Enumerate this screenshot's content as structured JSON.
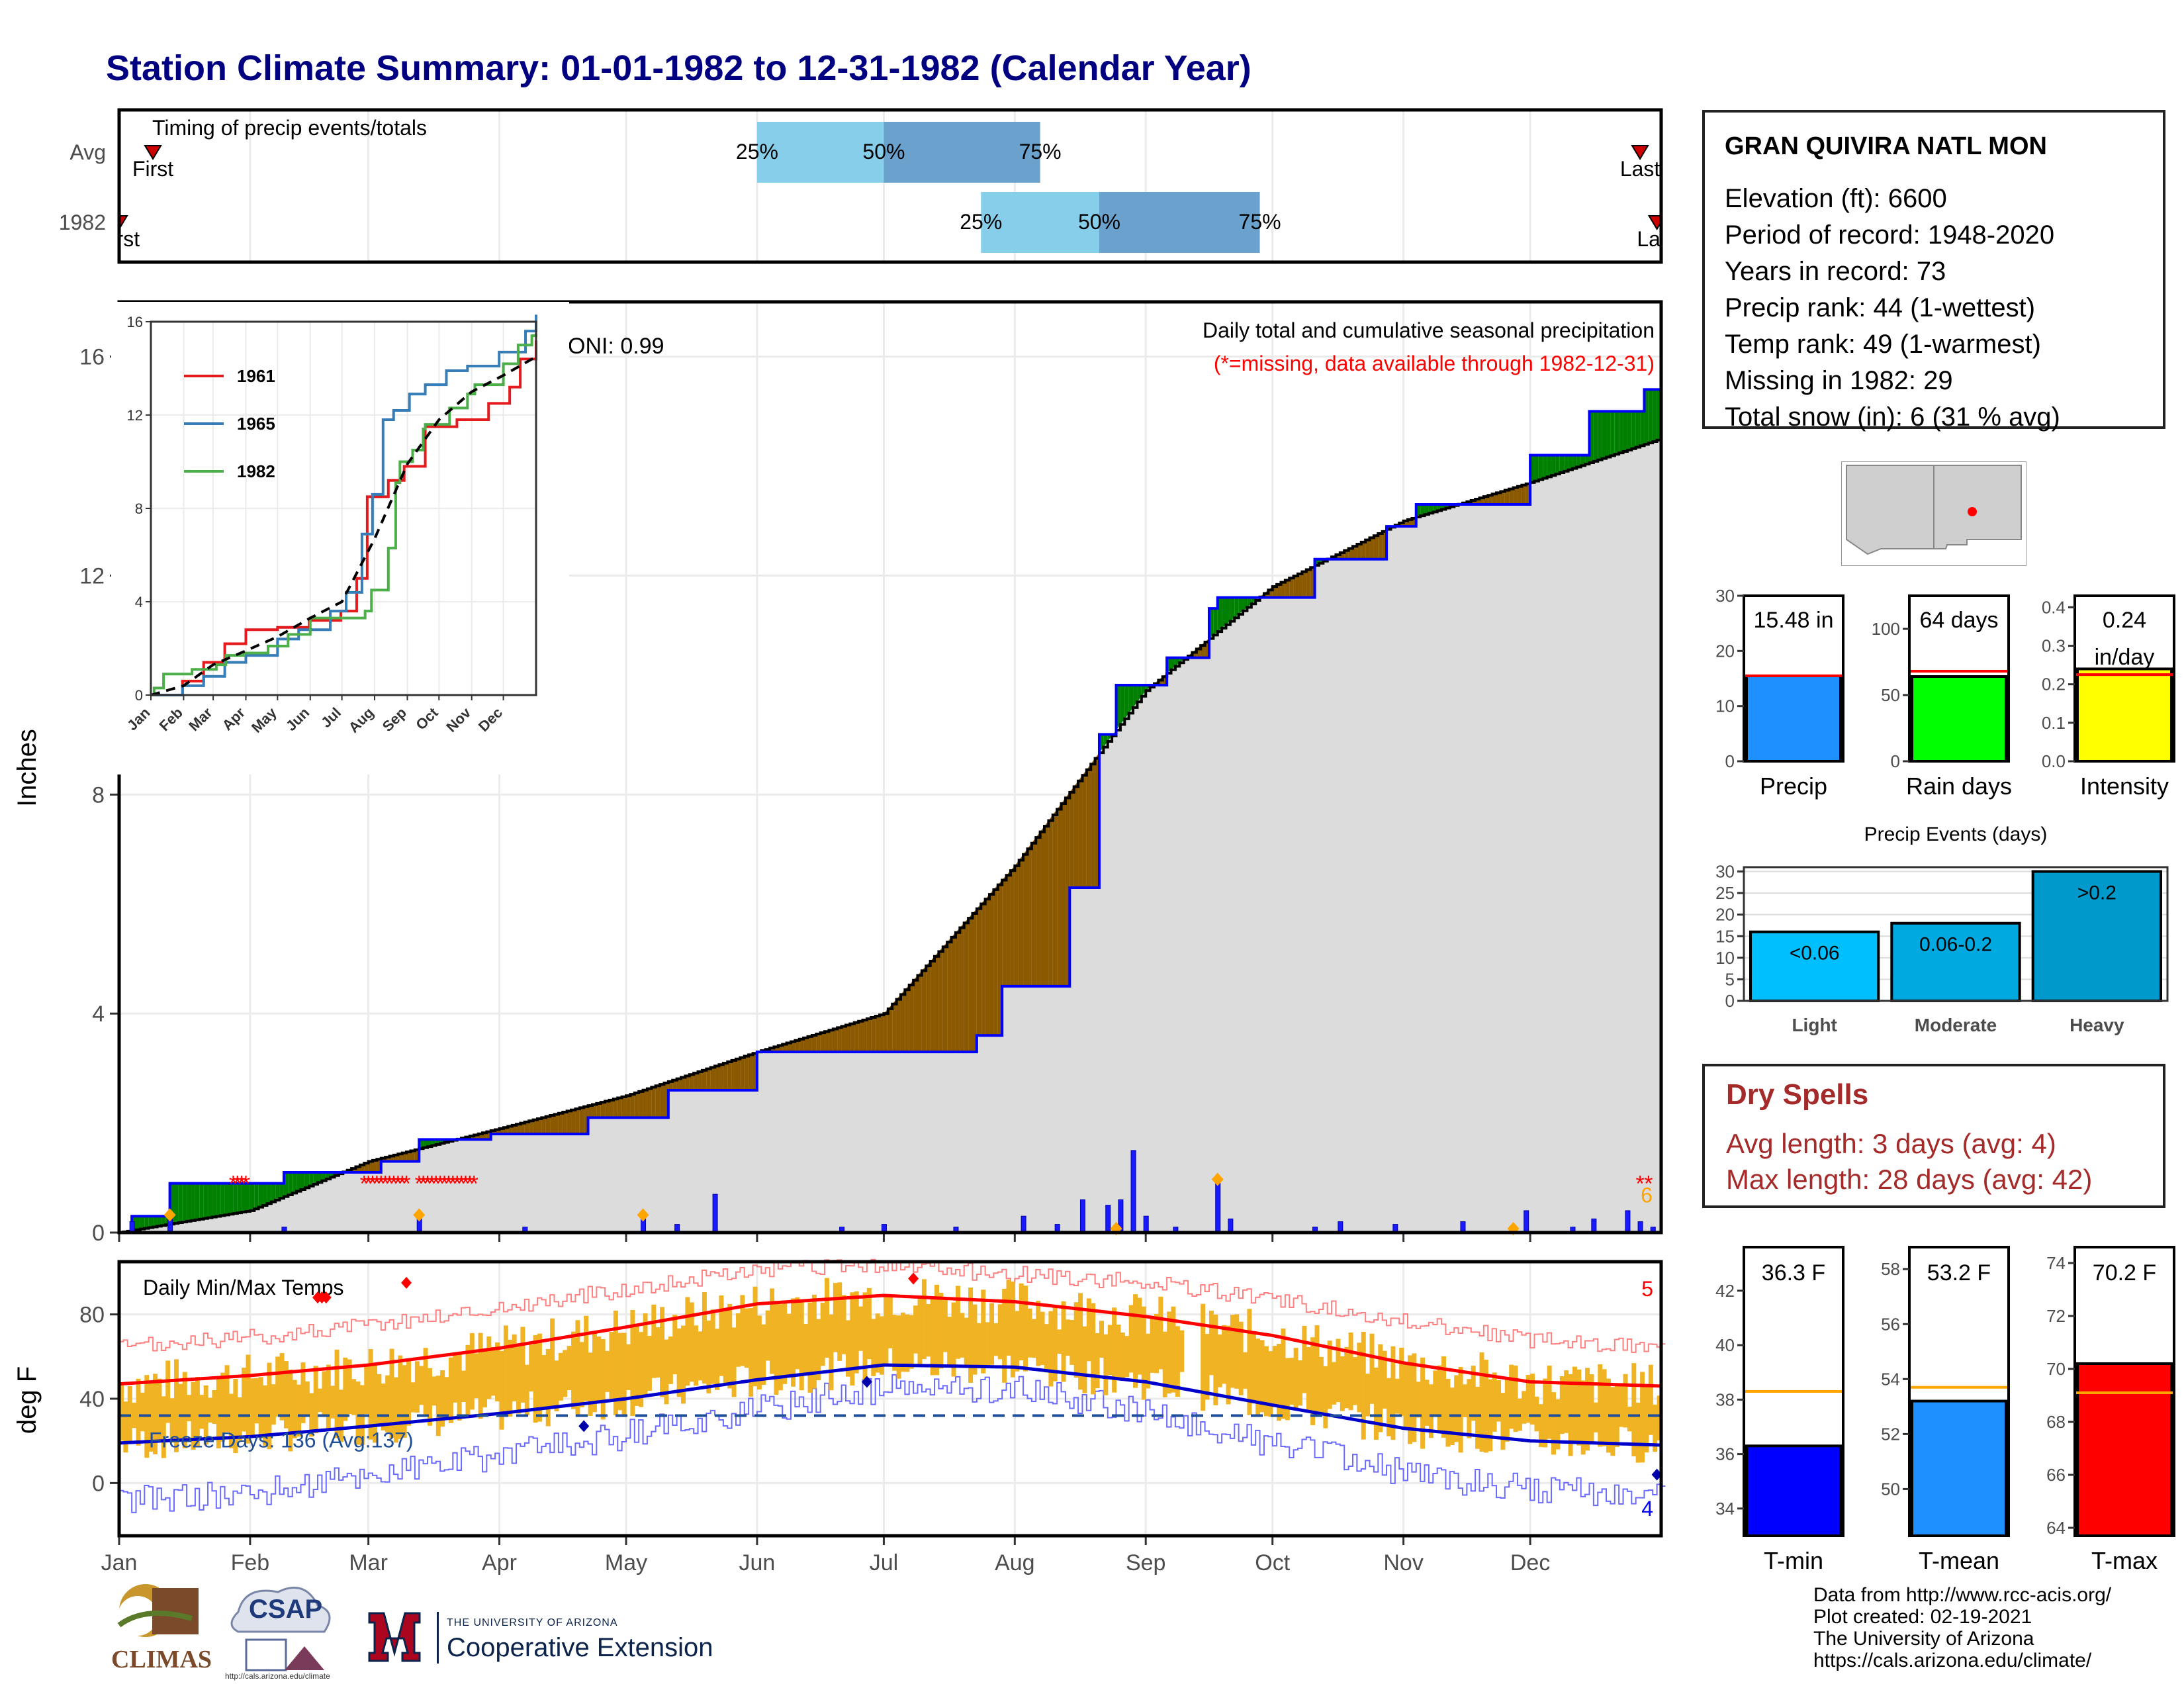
{
  "title": "Station Climate Summary: 01-01-1982 to 12-31-1982 (Calendar Year)",
  "station_info": {
    "name": "GRAN QUIVIRA NATL MON",
    "lines": [
      "Elevation (ft): 6600",
      "Period of record: 1948-2020",
      "Years in record: 73",
      "Precip rank: 44 (1-wettest)",
      "Temp rank: 49 (1-warmest)",
      "Missing in 1982: 29",
      "Total snow (in): 6 (31 % avg)"
    ]
  },
  "dry_spells": {
    "title": "Dry Spells",
    "avg": "Avg length: 3 days (avg: 4)",
    "max": "Max length: 28 days (avg: 42)"
  },
  "credits": [
    "Data from http://www.rcc-acis.org/",
    "Plot created: 02-19-2021",
    "The University of Arizona",
    "https://cals.arizona.edu/climate/"
  ],
  "logos": {
    "climas": "CLIMAS",
    "csap": "CSAP",
    "csap_url": "http://cals.arizona.edu/climate",
    "ua_small": "THE UNIVERSITY OF ARIZONA",
    "ua_big": "Cooperative Extension"
  },
  "colors": {
    "title": "#000080",
    "precip_obs": "#1a1aff",
    "wet_fill": "#008000",
    "dry_fill": "#8b5a00",
    "normal_fill": "#dcdcdc",
    "temp_bar": "#f0b323",
    "tmax_norm": "#ff0000",
    "tmin_norm": "#0000cc",
    "missing": "#ff0000"
  },
  "chart_data": [
    {
      "id": "timing",
      "type": "bar",
      "title": "Timing of precip events/totals",
      "categories": [
        "Avg",
        "1982"
      ],
      "quartile_labels": [
        "25%",
        "50%",
        "75%"
      ],
      "first_label": "First",
      "last_label": "Last",
      "rows": [
        {
          "name": "Avg",
          "first": "01-09",
          "q25": "06-01",
          "q50": "07-01",
          "q75": "08-07",
          "last": "12-27"
        },
        {
          "name": "1982",
          "first": "01-01",
          "q25": "07-24",
          "q50": "08-21",
          "q75": "09-28",
          "last": "12-31"
        }
      ]
    },
    {
      "id": "precip",
      "type": "area",
      "title": "Daily total and cumulative seasonal precipitation",
      "subtitle": "(*=missing, data available through 1982-12-31)",
      "ylabel": "Inches",
      "ylim": [
        0,
        17
      ],
      "yticks": [
        0,
        4,
        8,
        12,
        16
      ],
      "xticks": [
        "Jan",
        "Feb",
        "Mar",
        "Apr",
        "May",
        "Jun",
        "Jul",
        "Aug",
        "Sep",
        "Oct",
        "Nov",
        "Dec"
      ],
      "oni": "ONI: 0.99",
      "snow_total": "6",
      "normal_cumulative": {
        "x": [
          0,
          31,
          59,
          90,
          120,
          151,
          181,
          212,
          243,
          273,
          304,
          334,
          365
        ],
        "y": [
          0,
          0.4,
          1.3,
          1.9,
          2.5,
          3.3,
          4.0,
          6.7,
          9.9,
          11.8,
          13.0,
          13.7,
          14.5
        ]
      },
      "observed_cumulative": {
        "x": [
          0,
          3,
          12,
          39,
          62,
          71,
          88,
          111,
          130,
          151,
          181,
          203,
          209,
          225,
          232,
          236,
          248,
          258,
          260,
          283,
          300,
          307,
          334,
          348,
          361,
          365
        ],
        "y": [
          0,
          0.3,
          0.9,
          1.1,
          1.3,
          1.7,
          1.8,
          2.1,
          2.6,
          3.3,
          3.3,
          3.6,
          4.5,
          6.3,
          9.1,
          10.0,
          10.5,
          11.4,
          11.6,
          12.3,
          12.9,
          13.3,
          14.2,
          15.0,
          15.4,
          15.5
        ]
      },
      "daily_precip": {
        "day": [
          3,
          12,
          39,
          71,
          96,
          124,
          132,
          141,
          171,
          181,
          198,
          214,
          222,
          228,
          234,
          237,
          240,
          243,
          250,
          260,
          263,
          283,
          289,
          302,
          318,
          333,
          344,
          349,
          357,
          360,
          363
        ],
        "value": [
          0.2,
          0.25,
          0.1,
          0.25,
          0.1,
          0.25,
          0.15,
          0.7,
          0.1,
          0.15,
          0.1,
          0.3,
          0.15,
          0.6,
          0.5,
          0.6,
          1.5,
          0.3,
          0.1,
          0.9,
          0.25,
          0.1,
          0.2,
          0.15,
          0.2,
          0.4,
          0.1,
          0.25,
          0.4,
          0.2,
          0.1
        ]
      },
      "missing_days": [
        27,
        28,
        29,
        30,
        58,
        59,
        60,
        61,
        62,
        63,
        64,
        65,
        66,
        67,
        68,
        71,
        72,
        73,
        74,
        75,
        76,
        77,
        78,
        79,
        80,
        81,
        82,
        83,
        84,
        360,
        362
      ],
      "snow_days": [
        12,
        71,
        124,
        236,
        260,
        330
      ],
      "inset": {
        "type": "line",
        "ylim": [
          0,
          16
        ],
        "yticks": [
          0,
          4,
          8,
          12,
          16
        ],
        "xticks": [
          "Jan",
          "Feb",
          "Mar",
          "Apr",
          "May",
          "Jun",
          "Jul",
          "Aug",
          "Sep",
          "Oct",
          "Nov",
          "Dec"
        ],
        "series": [
          {
            "name": "1961",
            "color": "#e41a1c",
            "x": [
              0,
              30,
              50,
              70,
              90,
              120,
              150,
              180,
              195,
              205,
              225,
              240,
              260,
              290,
              320,
              340,
              350,
              365
            ],
            "y": [
              0,
              0.6,
              1.4,
              2.2,
              2.8,
              2.9,
              3.2,
              3.6,
              5.0,
              8.5,
              9.2,
              9.8,
              11.5,
              11.8,
              12.5,
              13.2,
              14.4,
              15.2
            ]
          },
          {
            "name": "1965",
            "color": "#377eb8",
            "x": [
              0,
              30,
              50,
              70,
              90,
              120,
              140,
              170,
              185,
              200,
              210,
              220,
              230,
              245,
              260,
              280,
              300,
              330,
              355,
              365
            ],
            "y": [
              0,
              0.4,
              0.8,
              1.4,
              1.7,
              2.4,
              2.8,
              3.6,
              4.4,
              6.9,
              8.6,
              11.8,
              12.2,
              12.9,
              13.3,
              13.9,
              14.1,
              14.7,
              15.6,
              16.3
            ]
          },
          {
            "name": "1982",
            "color": "#4daf4a",
            "x": [
              0,
              3,
              12,
              39,
              62,
              71,
              88,
              111,
              130,
              151,
              181,
              203,
              209,
              225,
              232,
              236,
              248,
              258,
              260,
              283,
              300,
              307,
              334,
              348,
              361,
              365
            ],
            "y": [
              0,
              0.3,
              0.9,
              1.1,
              1.3,
              1.7,
              1.8,
              2.1,
              2.6,
              3.3,
              3.3,
              3.6,
              4.5,
              6.3,
              9.1,
              10.0,
              10.5,
              11.4,
              11.6,
              12.3,
              12.9,
              13.3,
              14.2,
              15.0,
              15.4,
              15.5
            ]
          },
          {
            "name": "",
            "color": "#000000",
            "dash": true,
            "x": [
              0,
              31,
              59,
              90,
              120,
              151,
              181,
              212,
              243,
              273,
              304,
              334,
              365
            ],
            "y": [
              0,
              0.4,
              1.3,
              1.9,
              2.5,
              3.3,
              4.0,
              6.7,
              9.9,
              11.8,
              13.0,
              13.7,
              14.5
            ]
          }
        ]
      }
    },
    {
      "id": "precip_totals",
      "type": "bar",
      "panels": [
        {
          "label": "Precip",
          "value_text": "15.48 in",
          "value": 15.48,
          "avg": 15.5,
          "ylim": [
            0,
            30
          ],
          "yticks": [
            0,
            10,
            20,
            30
          ],
          "color": "#1e90ff"
        },
        {
          "label": "Rain days",
          "value_text": "64 days",
          "value": 64,
          "avg": 68,
          "ylim": [
            0,
            125
          ],
          "yticks": [
            0,
            50,
            100
          ],
          "color": "#00ff00"
        },
        {
          "label": "Intensity",
          "value_text": "0.24",
          "value_text2": "in/day",
          "value": 0.24,
          "avg": 0.225,
          "ylim": [
            0,
            0.43
          ],
          "yticks": [
            0.0,
            0.1,
            0.2,
            0.3,
            0.4
          ],
          "color": "#ffff00"
        }
      ]
    },
    {
      "id": "precip_events",
      "type": "bar",
      "title": "Precip Events (days)",
      "categories": [
        "Light",
        "Moderate",
        "Heavy"
      ],
      "bar_labels": [
        "<0.06",
        "0.06-0.2",
        ">0.2"
      ],
      "values": [
        16,
        18,
        30
      ],
      "ylim": [
        0,
        31
      ],
      "yticks": [
        0,
        5,
        10,
        15,
        20,
        25,
        30
      ],
      "colors": [
        "#00bfff",
        "#00a9e0",
        "#0099cc"
      ]
    },
    {
      "id": "daily_temps",
      "type": "bar",
      "title": "Daily Min/Max Temps",
      "ylabel": "deg F",
      "ylim": [
        -25,
        105
      ],
      "yticks": [
        0,
        40,
        80
      ],
      "freeze_line": 32,
      "freeze_label": "Freeze Days: 136 (Avg:137)",
      "record_high_count": "5",
      "record_low_count": "4",
      "xticks": [
        "Jan",
        "Feb",
        "Mar",
        "Apr",
        "May",
        "Jun",
        "Jul",
        "Aug",
        "Sep",
        "Oct",
        "Nov",
        "Dec"
      ],
      "norm_high": {
        "x": [
          0,
          31,
          59,
          90,
          120,
          151,
          181,
          212,
          243,
          273,
          304,
          334,
          365
        ],
        "y": [
          47,
          51,
          56,
          64,
          74,
          85,
          89,
          86,
          79,
          70,
          57,
          48,
          46
        ]
      },
      "norm_low": {
        "x": [
          0,
          31,
          59,
          90,
          120,
          151,
          181,
          212,
          243,
          273,
          304,
          334,
          365
        ],
        "y": [
          19,
          22,
          27,
          33,
          40,
          49,
          56,
          55,
          48,
          37,
          26,
          20,
          18
        ]
      },
      "record_high": {
        "x": [
          0,
          31,
          59,
          90,
          120,
          151,
          181,
          212,
          243,
          273,
          304,
          334,
          365
        ],
        "y": [
          64,
          69,
          75,
          83,
          92,
          101,
          103,
          99,
          95,
          87,
          77,
          68,
          65
        ]
      },
      "record_low": {
        "x": [
          0,
          31,
          59,
          90,
          120,
          151,
          181,
          212,
          243,
          273,
          304,
          334,
          365
        ],
        "y": [
          -8,
          -5,
          4,
          13,
          23,
          35,
          45,
          45,
          33,
          19,
          5,
          -3,
          -6
        ]
      }
    },
    {
      "id": "temp_summary",
      "type": "bar",
      "panels": [
        {
          "label": "T-min",
          "value_text": "36.3 F",
          "value": 36.3,
          "avg": 38.3,
          "ylim": [
            33,
            43.6
          ],
          "yticks": [
            34,
            36,
            38,
            40,
            42
          ],
          "color": "#0000ff"
        },
        {
          "label": "T-mean",
          "value_text": "53.2 F",
          "value": 53.2,
          "avg": 53.7,
          "ylim": [
            48.3,
            58.8
          ],
          "yticks": [
            50,
            52,
            54,
            56,
            58
          ],
          "color": "#1e90ff"
        },
        {
          "label": "T-max",
          "value_text": "70.2 F",
          "value": 70.2,
          "avg": 69.1,
          "ylim": [
            63.7,
            74.6
          ],
          "yticks": [
            64,
            66,
            68,
            70,
            72,
            74
          ],
          "color": "#ff0000"
        }
      ]
    }
  ]
}
